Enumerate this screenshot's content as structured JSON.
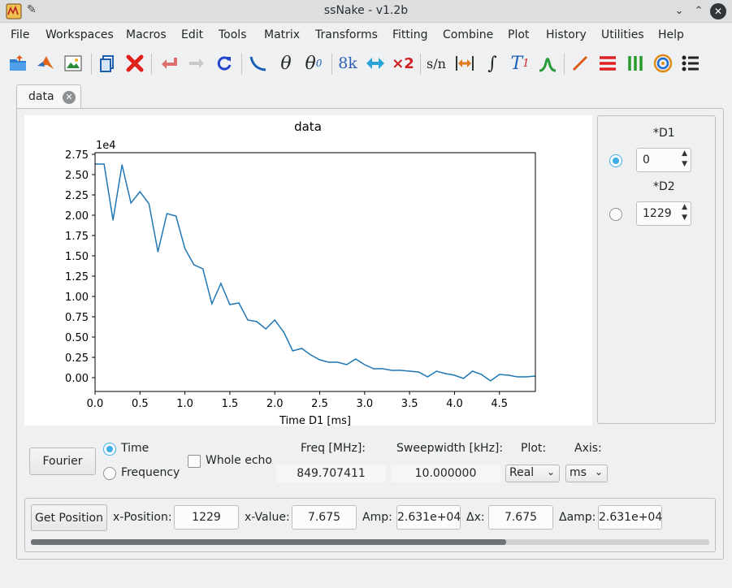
{
  "window": {
    "title": "ssNake - v1.2b"
  },
  "menu": [
    "File",
    "Workspaces",
    "Macros",
    "Edit",
    "Tools",
    "Matrix",
    "Transforms",
    "Fitting",
    "Combine",
    "Plot",
    "History",
    "Utilities",
    "Help"
  ],
  "toolbar": {
    "icons": [
      "open-folder-icon",
      "matlab-export-icon",
      "save-image-icon",
      "copy-icon",
      "delete-icon",
      "undo-icon",
      "redo-icon",
      "reload-icon",
      "phase-icon",
      "theta-icon",
      "theta0-icon",
      "sizing-icon",
      "shift-icon",
      "multiply-icon",
      "snr-icon",
      "fwhm-icon",
      "integral-icon",
      "t1-icon",
      "peak-icon",
      "line-plot-icon",
      "stack-plot-icon",
      "array-plot-icon",
      "contour-plot-icon",
      "list-icon"
    ],
    "labels": {
      "sizing": "8k",
      "multiply": "×2",
      "snr": "s/n",
      "theta": "θ",
      "theta0": "θ",
      "theta0_sub": "0",
      "integral": "∫",
      "t1": "T",
      "t1_sub": "1"
    }
  },
  "tabs": [
    {
      "label": "data"
    }
  ],
  "plot": {
    "title": "data",
    "xlabel": "Time D1 [ms]",
    "ylabel": "",
    "y_scale_label": "1e4",
    "x_ticks": [
      "0.0",
      "0.5",
      "1.0",
      "1.5",
      "2.0",
      "2.5",
      "3.0",
      "3.5",
      "4.0",
      "4.5"
    ],
    "y_ticks": [
      "0.00",
      "0.25",
      "0.50",
      "0.75",
      "1.00",
      "1.25",
      "1.50",
      "1.75",
      "2.00",
      "2.25",
      "2.50",
      "2.75"
    ]
  },
  "chart_data": {
    "type": "line",
    "title": "data",
    "xlabel": "Time D1 [ms]",
    "ylabel": "",
    "xlim": [
      0,
      4.9
    ],
    "ylim": [
      -0.17,
      2.77
    ],
    "y_scale": "1e4",
    "grid": false,
    "color": "#1f77b4",
    "x": [
      0.0,
      0.1,
      0.2,
      0.3,
      0.4,
      0.5,
      0.6,
      0.7,
      0.8,
      0.9,
      1.0,
      1.1,
      1.2,
      1.3,
      1.4,
      1.5,
      1.6,
      1.7,
      1.8,
      1.9,
      2.0,
      2.1,
      2.2,
      2.3,
      2.4,
      2.5,
      2.6,
      2.7,
      2.8,
      2.9,
      3.0,
      3.1,
      3.2,
      3.3,
      3.4,
      3.5,
      3.6,
      3.7,
      3.8,
      3.9,
      4.0,
      4.1,
      4.2,
      4.3,
      4.4,
      4.5,
      4.6,
      4.7,
      4.8,
      4.9
    ],
    "y": [
      2.63,
      2.63,
      1.94,
      2.62,
      2.15,
      2.29,
      2.14,
      1.55,
      2.02,
      1.99,
      1.59,
      1.39,
      1.34,
      0.91,
      1.16,
      0.9,
      0.92,
      0.71,
      0.69,
      0.6,
      0.71,
      0.56,
      0.33,
      0.36,
      0.28,
      0.22,
      0.19,
      0.19,
      0.16,
      0.23,
      0.16,
      0.11,
      0.11,
      0.09,
      0.09,
      0.08,
      0.07,
      0.01,
      0.08,
      0.05,
      0.03,
      -0.01,
      0.08,
      0.04,
      -0.04,
      0.04,
      0.03,
      0.01,
      0.01,
      0.02
    ]
  },
  "dims": {
    "d1": {
      "label": "*D1",
      "value": "0",
      "selected": true
    },
    "d2": {
      "label": "*D2",
      "value": "1229",
      "selected": false
    }
  },
  "controls": {
    "fourier_button": "Fourier",
    "time_label": "Time",
    "frequency_label": "Frequency",
    "whole_echo_label": "Whole echo",
    "freq_label": "Freq [MHz]:",
    "freq_value": "849.707411",
    "sweepwidth_label": "Sweepwidth [kHz]:",
    "sweepwidth_value": "10.000000",
    "plot_label": "Plot:",
    "plot_value": "Real",
    "axis_label": "Axis:",
    "axis_value": "ms"
  },
  "position": {
    "get_button": "Get Position",
    "xpos_label": "x-Position:",
    "xpos_value": "1229",
    "xval_label": "x-Value:",
    "xval_value": "7.675",
    "amp_label": "Amp:",
    "amp_value": "2.631e+04",
    "dx_label": "Δx:",
    "dx_value": "7.675",
    "damp_label": "Δamp:",
    "damp_value": "2.631e+04"
  },
  "scrollbar": {
    "position_fraction": 0.7
  }
}
